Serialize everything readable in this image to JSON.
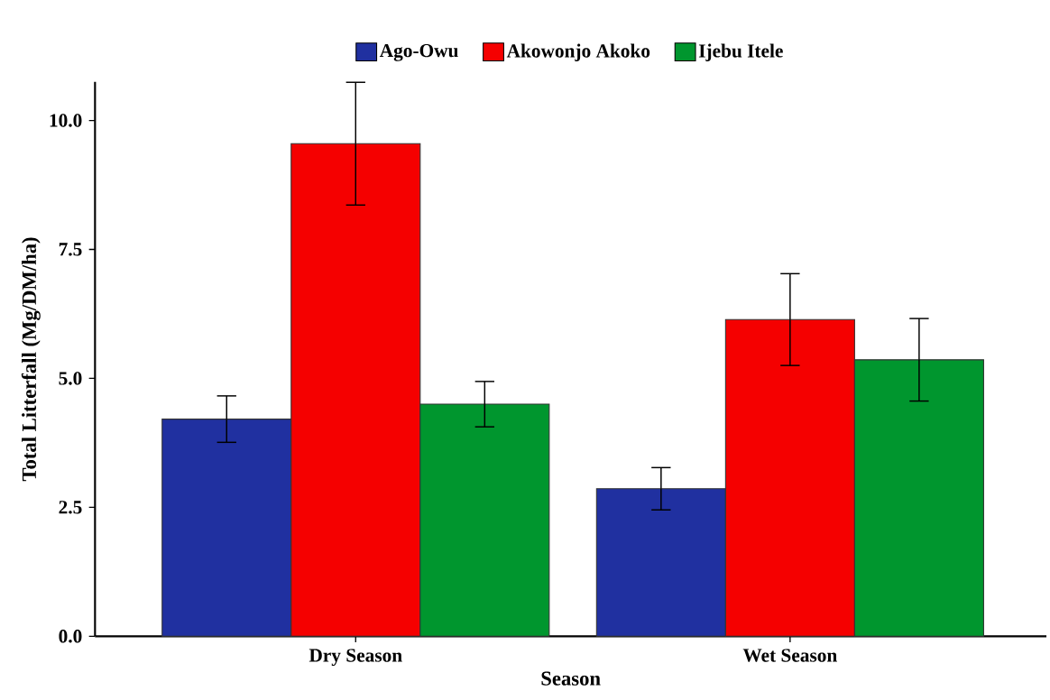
{
  "chart_data": {
    "type": "bar",
    "xlabel": "Season",
    "ylabel": "Total Litterfall (Mg/DM/ha)",
    "categories": [
      "Dry Season",
      "Wet Season"
    ],
    "series": [
      {
        "name": "Ago-Owu",
        "color": "#2030a0",
        "values": [
          4.21,
          2.86
        ],
        "errors": [
          0.45,
          0.41
        ]
      },
      {
        "name": "Akowonjo Akoko",
        "color": "#f50000",
        "values": [
          9.55,
          6.14
        ],
        "errors": [
          1.19,
          0.89
        ]
      },
      {
        "name": "Ijebu Itele",
        "color": "#00962e",
        "values": [
          4.5,
          5.36
        ],
        "errors": [
          0.44,
          0.8
        ]
      }
    ],
    "ylim": [
      0,
      10.75
    ],
    "yticks": [
      {
        "value": 0,
        "label": "0.0"
      },
      {
        "value": 2.5,
        "label": "2.5"
      },
      {
        "value": 5,
        "label": "5.0"
      },
      {
        "value": 7.5,
        "label": "7.5"
      },
      {
        "value": 10,
        "label": "10.0"
      }
    ],
    "legend": "top",
    "grid": false
  }
}
